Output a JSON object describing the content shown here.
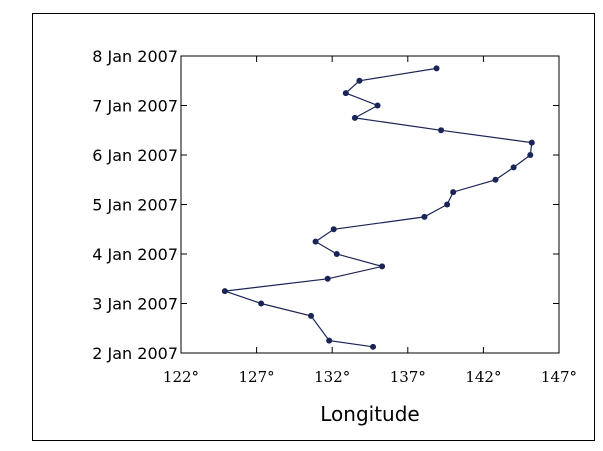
{
  "chart_data": {
    "type": "line",
    "title": "",
    "xlabel": "Longitude",
    "ylabel": "",
    "xlim": [
      122,
      147
    ],
    "ylim": [
      "2007-01-02",
      "2007-01-08"
    ],
    "x_ticks": [
      122,
      127,
      132,
      137,
      142,
      147
    ],
    "x_tick_labels": [
      "122°",
      "127°",
      "132°",
      "137°",
      "142°",
      "147°"
    ],
    "y_ticks": [
      "2007-01-02",
      "2007-01-03",
      "2007-01-04",
      "2007-01-05",
      "2007-01-06",
      "2007-01-07",
      "2007-01-08"
    ],
    "y_tick_labels": [
      "2 Jan 2007",
      "3 Jan 2007",
      "4 Jan 2007",
      "5 Jan 2007",
      "6 Jan 2007",
      "7 Jan 2007",
      "8 Jan 2007"
    ],
    "grid": false,
    "colors": {
      "series": "#1a2456"
    },
    "series": [
      {
        "points": [
          {
            "lon": 134.7,
            "time": "2007-01-02T03:00"
          },
          {
            "lon": 131.8,
            "time": "2007-01-02T06:00"
          },
          {
            "lon": 130.6,
            "time": "2007-01-02T18:00"
          },
          {
            "lon": 127.3,
            "time": "2007-01-03T00:00"
          },
          {
            "lon": 124.9,
            "time": "2007-01-03T06:00"
          },
          {
            "lon": 131.7,
            "time": "2007-01-03T12:00"
          },
          {
            "lon": 135.3,
            "time": "2007-01-03T18:00"
          },
          {
            "lon": 132.3,
            "time": "2007-01-04T00:00"
          },
          {
            "lon": 130.9,
            "time": "2007-01-04T06:00"
          },
          {
            "lon": 132.1,
            "time": "2007-01-04T12:00"
          },
          {
            "lon": 138.1,
            "time": "2007-01-04T18:00"
          },
          {
            "lon": 139.6,
            "time": "2007-01-05T00:00"
          },
          {
            "lon": 140.0,
            "time": "2007-01-05T06:00"
          },
          {
            "lon": 142.8,
            "time": "2007-01-05T12:00"
          },
          {
            "lon": 144.0,
            "time": "2007-01-05T18:00"
          },
          {
            "lon": 145.1,
            "time": "2007-01-06T00:00"
          },
          {
            "lon": 145.2,
            "time": "2007-01-06T06:00"
          },
          {
            "lon": 139.2,
            "time": "2007-01-06T12:00"
          },
          {
            "lon": 133.5,
            "time": "2007-01-06T18:00"
          },
          {
            "lon": 135.0,
            "time": "2007-01-07T00:00"
          },
          {
            "lon": 132.9,
            "time": "2007-01-07T06:00"
          },
          {
            "lon": 133.8,
            "time": "2007-01-07T12:00"
          },
          {
            "lon": 138.9,
            "time": "2007-01-07T18:00"
          }
        ]
      }
    ]
  }
}
